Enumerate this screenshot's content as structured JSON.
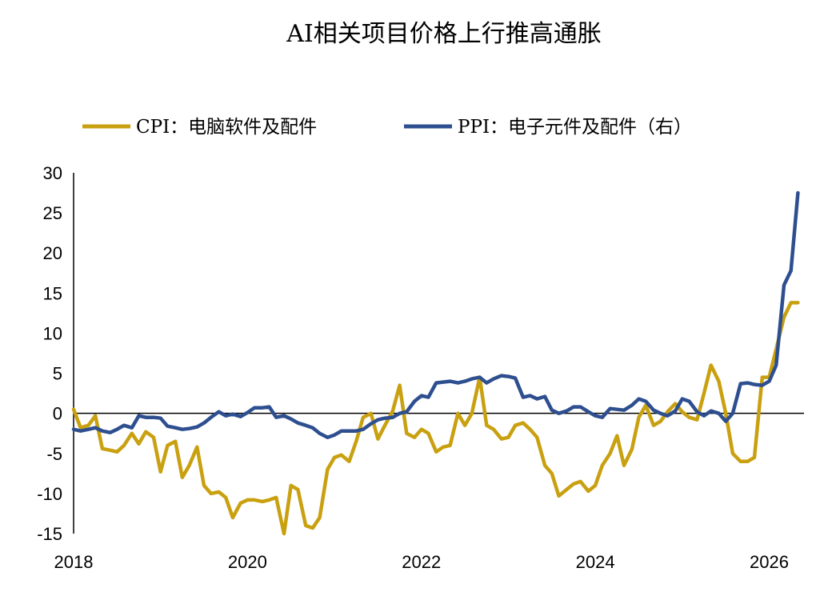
{
  "chart_data": {
    "type": "line",
    "title": "AI相关项目价格上行推高通胀",
    "x_range": [
      2018,
      2026.4
    ],
    "x_ticks": [
      "2018",
      "2020",
      "2022",
      "2024",
      "2026"
    ],
    "y_range": [
      -15,
      30
    ],
    "y_ticks": [
      "30",
      "25",
      "20",
      "15",
      "10",
      "5",
      "0",
      "-5",
      "-10",
      "-15"
    ],
    "legend_position": "top",
    "series": [
      {
        "name": "CPI：电脑软件及配件",
        "color": "#C9A010",
        "x": [
          2018.0,
          2018.08,
          2018.17,
          2018.25,
          2018.33,
          2018.42,
          2018.5,
          2018.58,
          2018.67,
          2018.75,
          2018.83,
          2018.92,
          2019.0,
          2019.08,
          2019.17,
          2019.25,
          2019.33,
          2019.42,
          2019.5,
          2019.58,
          2019.67,
          2019.75,
          2019.83,
          2019.92,
          2020.0,
          2020.08,
          2020.17,
          2020.25,
          2020.33,
          2020.42,
          2020.5,
          2020.58,
          2020.67,
          2020.75,
          2020.83,
          2020.92,
          2021.0,
          2021.08,
          2021.17,
          2021.25,
          2021.33,
          2021.42,
          2021.5,
          2021.58,
          2021.67,
          2021.75,
          2021.83,
          2021.92,
          2022.0,
          2022.08,
          2022.17,
          2022.25,
          2022.33,
          2022.42,
          2022.5,
          2022.58,
          2022.67,
          2022.75,
          2022.83,
          2022.92,
          2023.0,
          2023.08,
          2023.17,
          2023.25,
          2023.33,
          2023.42,
          2023.5,
          2023.58,
          2023.67,
          2023.75,
          2023.83,
          2023.92,
          2024.0,
          2024.08,
          2024.17,
          2024.25,
          2024.33,
          2024.42,
          2024.5,
          2024.58,
          2024.67,
          2024.75,
          2024.83,
          2024.92,
          2025.0,
          2025.08,
          2025.17,
          2025.25,
          2025.33,
          2025.42,
          2025.5,
          2025.58,
          2025.67,
          2025.75,
          2025.83,
          2025.92,
          2026.0,
          2026.08,
          2026.17,
          2026.25,
          2026.33
        ],
        "y": [
          0.5,
          -1.8,
          -1.5,
          -0.3,
          -4.4,
          -4.6,
          -4.8,
          -4.0,
          -2.5,
          -3.8,
          -2.3,
          -3.0,
          -7.3,
          -4.0,
          -3.5,
          -8.0,
          -6.5,
          -4.2,
          -9.0,
          -10.0,
          -9.8,
          -10.5,
          -13.0,
          -11.2,
          -10.8,
          -10.8,
          -11.0,
          -10.8,
          -10.5,
          -15.0,
          -9.0,
          -9.5,
          -14.0,
          -14.3,
          -13.0,
          -7.0,
          -5.5,
          -5.2,
          -6.0,
          -3.5,
          -0.5,
          0.0,
          -3.2,
          -1.5,
          0.3,
          3.5,
          -2.5,
          -3.0,
          -2.0,
          -2.5,
          -4.8,
          -4.2,
          -4.0,
          0.0,
          -1.5,
          0.0,
          4.5,
          -1.5,
          -2.0,
          -3.2,
          -3.0,
          -1.5,
          -1.2,
          -2.0,
          -3.0,
          -6.5,
          -7.5,
          -10.3,
          -9.5,
          -8.8,
          -8.5,
          -9.7,
          -9.0,
          -6.5,
          -5.0,
          -2.8,
          -6.5,
          -4.5,
          -0.5,
          1.0,
          -1.5,
          -1.0,
          0.2,
          1.2,
          0.2,
          -0.5,
          -0.8,
          2.5,
          6.0,
          4.0,
          0.0,
          -5.0,
          -6.0,
          -6.0,
          -5.5,
          4.5,
          4.5,
          8.0,
          12.0,
          13.8,
          13.8
        ]
      },
      {
        "name": "PPI：电子元件及配件（右）",
        "color": "#2E4F8F",
        "x": [
          2018.0,
          2018.08,
          2018.17,
          2018.25,
          2018.33,
          2018.42,
          2018.5,
          2018.58,
          2018.67,
          2018.75,
          2018.83,
          2018.92,
          2019.0,
          2019.08,
          2019.17,
          2019.25,
          2019.33,
          2019.42,
          2019.5,
          2019.58,
          2019.67,
          2019.75,
          2019.83,
          2019.92,
          2020.0,
          2020.08,
          2020.17,
          2020.25,
          2020.33,
          2020.42,
          2020.5,
          2020.58,
          2020.67,
          2020.75,
          2020.83,
          2020.92,
          2021.0,
          2021.08,
          2021.17,
          2021.25,
          2021.33,
          2021.42,
          2021.5,
          2021.58,
          2021.67,
          2021.75,
          2021.83,
          2021.92,
          2022.0,
          2022.08,
          2022.17,
          2022.25,
          2022.33,
          2022.42,
          2022.5,
          2022.58,
          2022.67,
          2022.75,
          2022.83,
          2022.92,
          2023.0,
          2023.08,
          2023.17,
          2023.25,
          2023.33,
          2023.42,
          2023.5,
          2023.58,
          2023.67,
          2023.75,
          2023.83,
          2023.92,
          2024.0,
          2024.08,
          2024.17,
          2024.25,
          2024.33,
          2024.42,
          2024.5,
          2024.58,
          2024.67,
          2024.75,
          2024.83,
          2024.92,
          2025.0,
          2025.08,
          2025.17,
          2025.25,
          2025.33,
          2025.42,
          2025.5,
          2025.58,
          2025.67,
          2025.75,
          2025.83,
          2025.92,
          2026.0,
          2026.08,
          2026.17,
          2026.25,
          2026.33
        ],
        "y": [
          -2.0,
          -2.2,
          -2.0,
          -1.8,
          -2.2,
          -2.4,
          -2.0,
          -1.5,
          -1.8,
          -0.3,
          -0.5,
          -0.5,
          -0.6,
          -1.6,
          -1.8,
          -2.0,
          -1.9,
          -1.7,
          -1.2,
          -0.5,
          0.2,
          -0.3,
          -0.1,
          -0.4,
          0.1,
          0.7,
          0.7,
          0.8,
          -0.5,
          -0.3,
          -0.7,
          -1.2,
          -1.5,
          -1.8,
          -2.5,
          -3.0,
          -2.7,
          -2.2,
          -2.2,
          -2.2,
          -2.0,
          -1.3,
          -0.8,
          -0.6,
          -0.5,
          0.0,
          0.2,
          1.5,
          2.2,
          2.0,
          3.8,
          3.9,
          4.0,
          3.8,
          4.0,
          4.3,
          4.5,
          3.8,
          4.3,
          4.7,
          4.6,
          4.4,
          2.0,
          2.2,
          1.8,
          2.1,
          0.4,
          0.0,
          0.3,
          0.8,
          0.8,
          0.2,
          -0.3,
          -0.5,
          0.6,
          0.5,
          0.4,
          1.0,
          1.8,
          1.5,
          0.4,
          0.0,
          -0.3,
          0.3,
          1.8,
          1.5,
          0.2,
          -0.3,
          0.3,
          0.0,
          -1.0,
          0.0,
          3.7,
          3.8,
          3.6,
          3.5,
          4.0,
          6.0,
          16.0,
          17.8,
          27.5
        ]
      }
    ]
  }
}
